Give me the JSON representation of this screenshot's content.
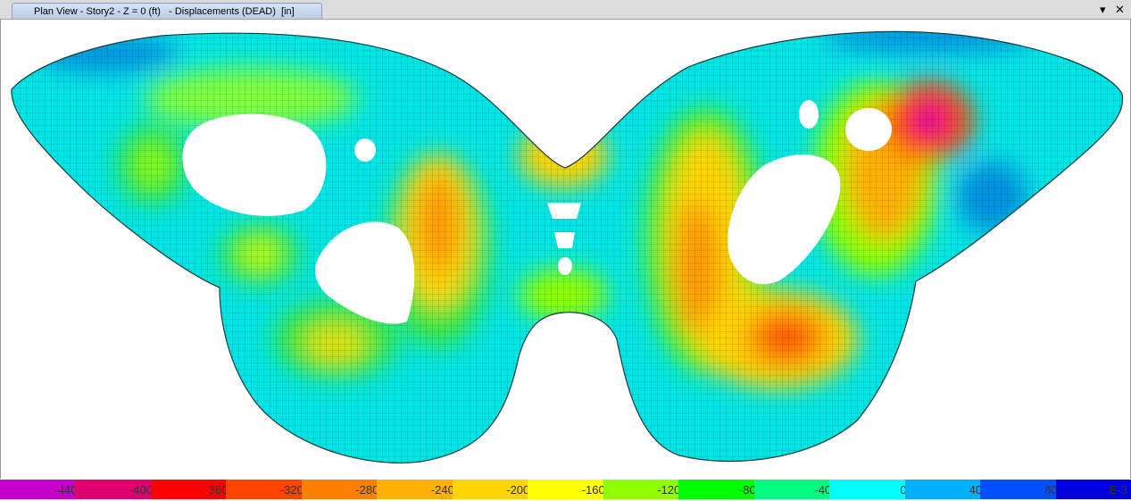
{
  "window": {
    "tab_title": "Plan View - Story2 - Z = 0 (ft)   - Displacements (DEAD)  [in]",
    "controls": {
      "dropdown_icon": "chevron-down-icon",
      "close_icon": "close-icon",
      "dropdown": "▾",
      "close": "✕"
    }
  },
  "legend": {
    "colors": [
      "#c400cc",
      "#e0006e",
      "#ff0000",
      "#ff4400",
      "#ff8000",
      "#ffb000",
      "#ffd400",
      "#ffff00",
      "#90ff00",
      "#00ff00",
      "#00ff80",
      "#00ffff",
      "#00b0ff",
      "#0050ff",
      "#0000e0"
    ],
    "labels": [
      "-440",
      "-400",
      "-360",
      "-320",
      "-280",
      "-240",
      "-200",
      "-160",
      "-120",
      "-80",
      "-40",
      "0",
      "40",
      "80",
      "E-3"
    ]
  }
}
